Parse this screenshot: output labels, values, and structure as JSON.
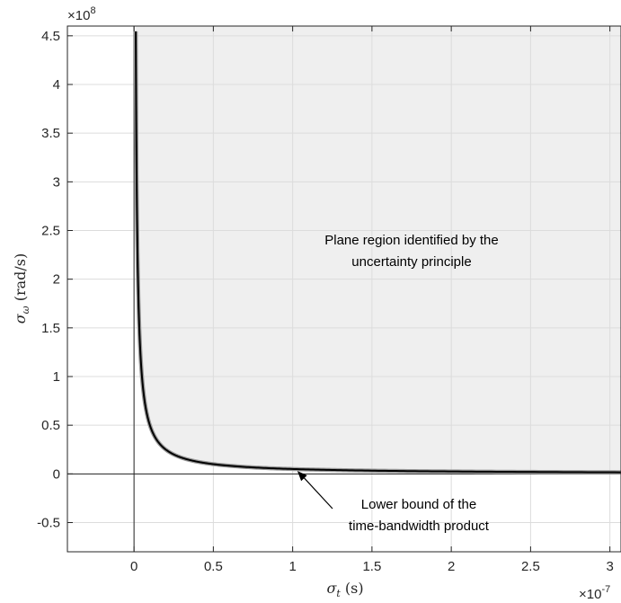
{
  "chart_data": {
    "type": "area",
    "xlabel": "σt (s)",
    "ylabel": "σω (rad/s)",
    "x_exponent": "×10^-7",
    "y_exponent": "×10^8",
    "x_ticks": [
      "0",
      "0.5",
      "1",
      "1.5",
      "2",
      "2.5",
      "3"
    ],
    "y_ticks": [
      "-0.5",
      "0",
      "0.5",
      "1",
      "1.5",
      "2",
      "2.5",
      "3",
      "3.5",
      "4",
      "4.5"
    ],
    "xlim": [
      -4.2e-08,
      3.07e-07
    ],
    "ylim": [
      -80000000.0,
      460000000.0
    ],
    "grid": true,
    "colors": {
      "region_fill": "#efefef",
      "curve": "#000000",
      "grid": "#dcdcdc"
    },
    "series": [
      {
        "function": "sigma_omega = C / sigma_t",
        "C": 0.5,
        "x": [
          1.1e-09,
          2e-09,
          5e-09,
          1e-08,
          2e-08,
          5e-08,
          1e-07,
          1.5e-07,
          2e-07,
          2.5e-07,
          3e-07
        ],
        "y": [
          455000000.0,
          250000000.0,
          100000000.0,
          50000000.0,
          25000000.0,
          10000000.0,
          5000000.0,
          3300000.0,
          2500000.0,
          2000000.0,
          1700000.0
        ]
      }
    ],
    "annotations": [
      {
        "lines": [
          "Plane region identified by the",
          "uncertainty principle"
        ]
      },
      {
        "lines": [
          "Lower bound of the",
          "time-bandwidth product"
        ]
      }
    ]
  }
}
